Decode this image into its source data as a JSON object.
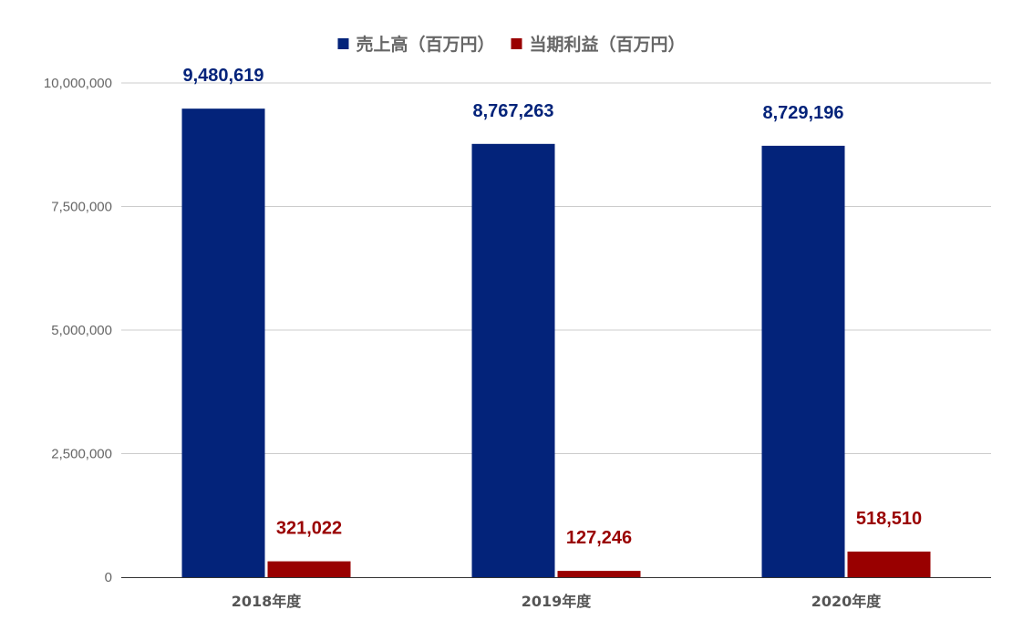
{
  "chart_data": {
    "type": "bar",
    "title": "",
    "xlabel": "",
    "ylabel": "",
    "categories": [
      "2018年度",
      "2019年度",
      "2020年度"
    ],
    "series": [
      {
        "name": "売上高（百万円）",
        "color": "#03237a",
        "values": [
          9480619,
          8767263,
          8729196
        ],
        "labels": [
          "9,480,619",
          "8,767,263",
          "8,729,196"
        ]
      },
      {
        "name": "当期利益（百万円）",
        "color": "#990000",
        "values": [
          321022,
          127246,
          518510
        ],
        "labels": [
          "321,022",
          "127,246",
          "518,510"
        ]
      }
    ],
    "ylim": [
      0,
      10000000
    ],
    "yticks": [
      0,
      2500000,
      5000000,
      7500000,
      10000000
    ],
    "ytick_labels": [
      "0",
      "2,500,000",
      "5,000,000",
      "7,500,000",
      "10,000,000"
    ],
    "grid": true,
    "legend_position": "top-center",
    "gridline_color": "#cccccc",
    "axis_color": "#333333"
  }
}
